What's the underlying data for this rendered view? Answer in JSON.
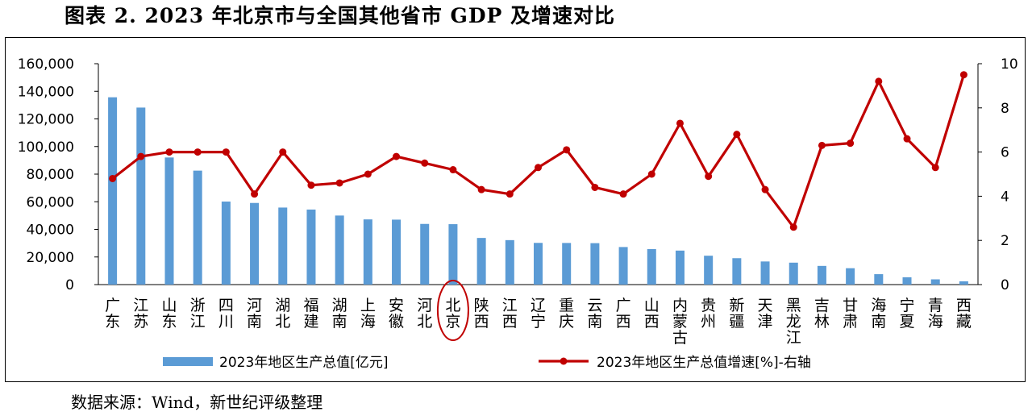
{
  "figure": {
    "title": "图表 2.   2023 年北京市与全国其他省市 GDP 及增速对比",
    "source": "数据来源：Wind，新世纪评级整理"
  },
  "colors": {
    "bar": "#5B9BD5",
    "line": "#C00000",
    "highlight": "#C00000"
  },
  "chart_data": {
    "type": "bar+line",
    "categories": [
      "广东",
      "江苏",
      "山东",
      "浙江",
      "四川",
      "河南",
      "湖北",
      "福建",
      "湖南",
      "上海",
      "安徽",
      "河北",
      "北京",
      "陕西",
      "江西",
      "辽宁",
      "重庆",
      "云南",
      "广西",
      "山西",
      "内蒙古",
      "贵州",
      "新疆",
      "天津",
      "黑龙江",
      "吉林",
      "甘肃",
      "海南",
      "宁夏",
      "青海",
      "西藏"
    ],
    "series": [
      {
        "name": "2023年地区生产总值[亿元]",
        "type": "bar",
        "axis": "left",
        "values": [
          135673,
          128222,
          92069,
          82553,
          60133,
          59132,
          55804,
          54355,
          50013,
          47219,
          47051,
          43944,
          43761,
          33786,
          32200,
          30209,
          30146,
          30021,
          27202,
          25698,
          24627,
          20913,
          19126,
          16737,
          15884,
          13531,
          11864,
          7551,
          5315,
          3799,
          2393
        ]
      },
      {
        "name": "2023年地区生产总值增速[%]-右轴",
        "type": "line",
        "axis": "right",
        "values": [
          4.8,
          5.8,
          6.0,
          6.0,
          6.0,
          4.1,
          6.0,
          4.5,
          4.6,
          5.0,
          5.8,
          5.5,
          5.2,
          4.3,
          4.1,
          5.3,
          6.1,
          4.4,
          4.1,
          5.0,
          7.3,
          4.9,
          6.8,
          4.3,
          2.6,
          6.3,
          6.4,
          9.2,
          6.6,
          5.3,
          9.5
        ]
      }
    ],
    "y_left": {
      "min": 0,
      "max": 160000,
      "step": 20000,
      "ticks": [
        "0",
        "20,000",
        "40,000",
        "60,000",
        "80,000",
        "100,000",
        "120,000",
        "140,000",
        "160,000"
      ]
    },
    "y_right": {
      "min": 0,
      "max": 10,
      "step": 2,
      "ticks": [
        "0",
        "2",
        "4",
        "6",
        "8",
        "10"
      ]
    },
    "highlight_category": "北京",
    "grid": false,
    "legend_position": "bottom"
  }
}
